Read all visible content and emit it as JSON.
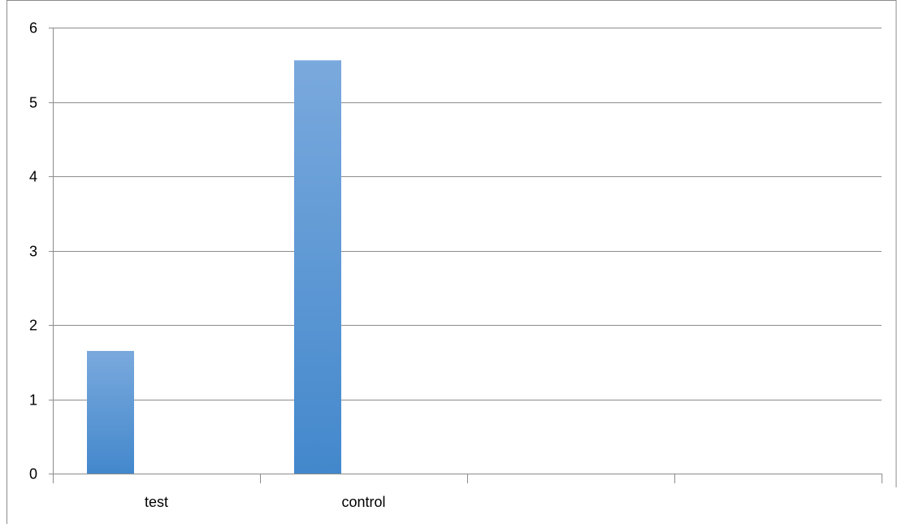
{
  "chart_data": {
    "type": "bar",
    "categories": [
      "test",
      "control",
      "",
      ""
    ],
    "values": [
      1.65,
      5.56,
      null,
      null
    ],
    "title": "",
    "xlabel": "",
    "ylabel": "",
    "ylim": [
      0,
      6
    ],
    "yticks": [
      0,
      1,
      2,
      3,
      4,
      5,
      6
    ],
    "grid": true,
    "legend": "none",
    "colors": {
      "bar_top": "#7aa9dd",
      "bar_bottom": "#4388cc",
      "gridline": "#8c8c8c",
      "axis": "#8c8c8c",
      "frame": "#8c8c8c"
    }
  }
}
